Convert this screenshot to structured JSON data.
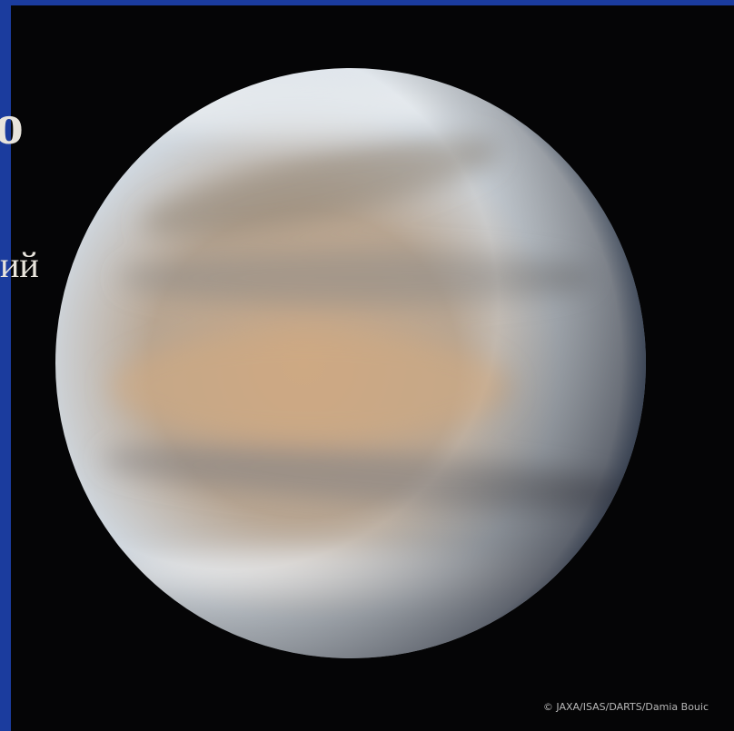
{
  "fragments": [
    "о",
    "ий"
  ],
  "credit": "© JAXA/ISAS/DARTS/Damia Bouic"
}
